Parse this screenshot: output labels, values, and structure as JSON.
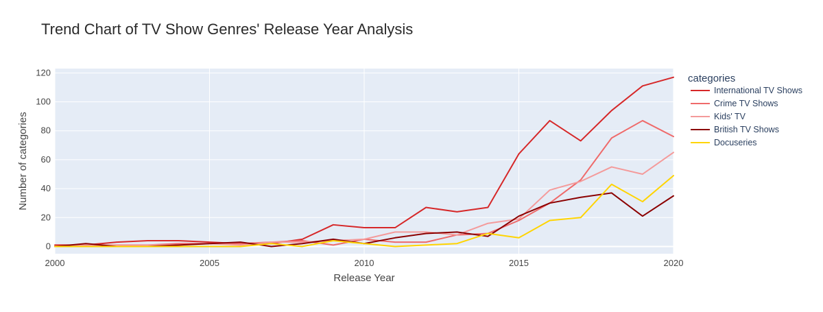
{
  "chart_data": {
    "type": "line",
    "title": "Trend Chart of TV Show Genres' Release Year Analysis",
    "xlabel": "Release Year",
    "ylabel": "Number of categories",
    "xlim": [
      2000,
      2020
    ],
    "ylim": [
      -5,
      123
    ],
    "x_ticks": [
      2000,
      2005,
      2010,
      2015,
      2020
    ],
    "y_ticks": [
      0,
      20,
      40,
      60,
      80,
      100,
      120
    ],
    "grid": true,
    "plot_background": "#e5ecf6",
    "legend": {
      "title": "categories",
      "placement": "right"
    },
    "x": [
      2000,
      2001,
      2002,
      2003,
      2004,
      2005,
      2006,
      2007,
      2008,
      2009,
      2010,
      2011,
      2012,
      2013,
      2014,
      2015,
      2016,
      2017,
      2018,
      2019,
      2020
    ],
    "series": [
      {
        "name": "International TV Shows",
        "color": "#d62728",
        "values": [
          1,
          1,
          3,
          4,
          4,
          3,
          2,
          2,
          5,
          15,
          13,
          13,
          27,
          24,
          27,
          64,
          87,
          73,
          94,
          111,
          117
        ]
      },
      {
        "name": "Crime TV Shows",
        "color": "#ef6a6a",
        "values": [
          0,
          1,
          1,
          1,
          2,
          2,
          2,
          3,
          4,
          1,
          5,
          3,
          3,
          8,
          9,
          18,
          30,
          46,
          75,
          87,
          76
        ]
      },
      {
        "name": "Kids' TV",
        "color": "#f49a9a",
        "values": [
          0,
          1,
          1,
          1,
          1,
          2,
          1,
          3,
          3,
          4,
          5,
          10,
          10,
          8,
          16,
          19,
          39,
          45,
          55,
          50,
          65
        ]
      },
      {
        "name": "British TV Shows",
        "color": "#8b0000",
        "values": [
          0,
          2,
          0,
          0,
          1,
          2,
          3,
          0,
          2,
          5,
          2,
          6,
          9,
          10,
          7,
          21,
          30,
          34,
          37,
          21,
          35
        ]
      },
      {
        "name": "Docuseries",
        "color": "#ffd400",
        "values": [
          0,
          0,
          0,
          0,
          0,
          0,
          0,
          2,
          0,
          4,
          2,
          0,
          1,
          2,
          9,
          6,
          18,
          20,
          43,
          31,
          49
        ]
      }
    ]
  }
}
